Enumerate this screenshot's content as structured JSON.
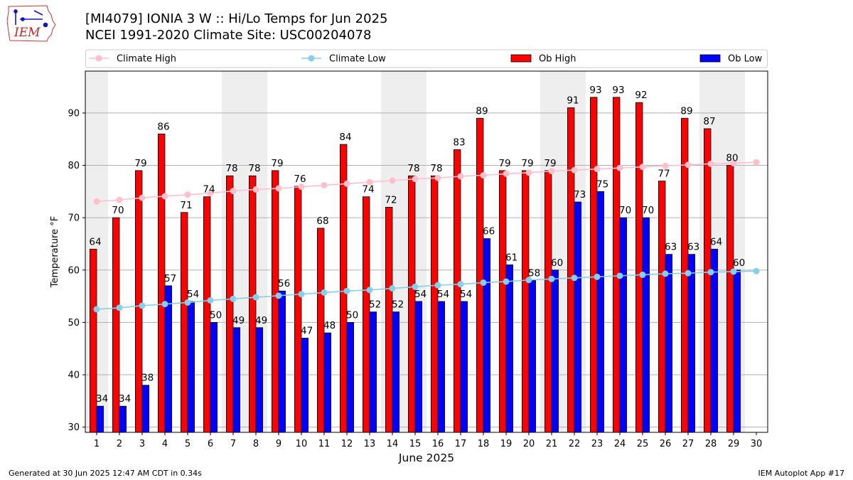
{
  "logo": {
    "text": "IEM",
    "colors": {
      "outline": "#cc3333",
      "text": "#cc2222",
      "mark": "#1515c0"
    }
  },
  "title": {
    "line1": "[MI4079] IONIA 3 W :: Hi/Lo Temps for Jun 2025",
    "line2": "NCEI 1991-2020 Climate Site: USC00204078"
  },
  "footer": {
    "left": "Generated at 30 Jun 2025 12:47 AM CDT in 0.34s",
    "right": "IEM Autoplot App #17"
  },
  "chart_data": {
    "type": "bar",
    "xlabel": "June 2025",
    "ylabel": "Temperature °F",
    "ylim": [
      29,
      98
    ],
    "yticks": [
      30,
      40,
      50,
      60,
      70,
      80,
      90
    ],
    "grid": true,
    "legend_position": "top",
    "days": [
      1,
      2,
      3,
      4,
      5,
      6,
      7,
      8,
      9,
      10,
      11,
      12,
      13,
      14,
      15,
      16,
      17,
      18,
      19,
      20,
      21,
      22,
      23,
      24,
      25,
      26,
      27,
      28,
      29,
      30
    ],
    "shaded_days": [
      1,
      7,
      8,
      14,
      15,
      21,
      22,
      28,
      29
    ],
    "series": [
      {
        "name": "Ob High",
        "kind": "bar",
        "color": "#ff0000",
        "values": [
          64,
          70,
          79,
          86,
          71,
          74,
          78,
          78,
          79,
          76,
          68,
          84,
          74,
          72,
          78,
          78,
          83,
          89,
          79,
          79,
          79,
          91,
          93,
          93,
          92,
          77,
          89,
          87,
          80
        ]
      },
      {
        "name": "Ob Low",
        "kind": "bar",
        "color": "#0000ff",
        "values": [
          34,
          34,
          38,
          57,
          54,
          50,
          49,
          49,
          56,
          47,
          48,
          50,
          52,
          52,
          54,
          54,
          54,
          66,
          61,
          58,
          60,
          73,
          75,
          70,
          70,
          63,
          63,
          64,
          60
        ]
      },
      {
        "name": "Climate High",
        "kind": "line",
        "color": "#ffc0cb",
        "values": [
          73.1,
          73.4,
          73.8,
          74.1,
          74.4,
          74.7,
          75.1,
          75.4,
          75.6,
          75.9,
          76.2,
          76.5,
          76.8,
          77.1,
          77.4,
          77.6,
          77.9,
          78.1,
          78.4,
          78.6,
          78.9,
          79.1,
          79.3,
          79.5,
          79.7,
          79.9,
          80.1,
          80.3,
          80.4,
          80.6
        ]
      },
      {
        "name": "Climate Low",
        "kind": "line",
        "color": "#87ceeb",
        "values": [
          52.5,
          52.8,
          53.2,
          53.5,
          53.8,
          54.2,
          54.5,
          54.8,
          55.1,
          55.4,
          55.7,
          56.0,
          56.2,
          56.5,
          56.8,
          57.1,
          57.3,
          57.6,
          57.8,
          58.1,
          58.3,
          58.5,
          58.7,
          58.9,
          59.1,
          59.3,
          59.4,
          59.6,
          59.7,
          59.8
        ]
      }
    ],
    "legend_order": [
      "Climate High",
      "Climate Low",
      "Ob High",
      "Ob Low"
    ]
  }
}
